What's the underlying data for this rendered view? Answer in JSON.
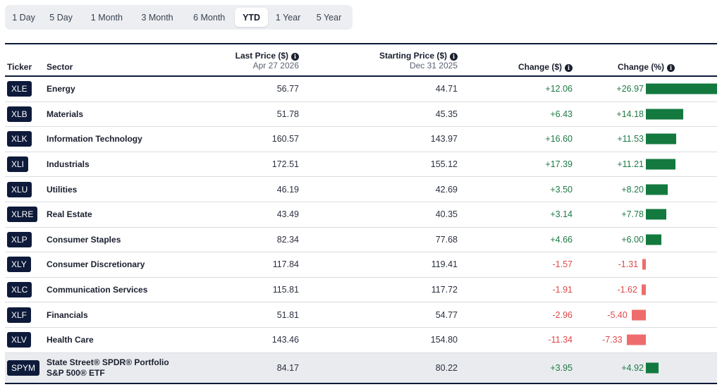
{
  "tabs": [
    {
      "label": "1 Day",
      "active": false
    },
    {
      "label": "5 Day",
      "active": false
    },
    {
      "label": "1 Month",
      "active": false
    },
    {
      "label": "3 Month",
      "active": false
    },
    {
      "label": "6 Month",
      "active": false
    },
    {
      "label": "YTD",
      "active": true
    },
    {
      "label": "1 Year",
      "active": false
    },
    {
      "label": "5 Year",
      "active": false
    }
  ],
  "columns": {
    "ticker": "Ticker",
    "sector": "Sector",
    "last_price": "Last Price ($)",
    "last_price_date": "Apr 27 2026",
    "starting_price": "Starting Price ($)",
    "starting_price_date": "Dec 31 2025",
    "change_dollar": "Change ($)",
    "change_pct": "Change (%)"
  },
  "icons": {
    "info": "info-icon"
  },
  "colors": {
    "navy": "#0e1a3a",
    "positive": "#13793f",
    "negative": "#ee6c6c"
  },
  "rows": [
    {
      "ticker": "XLE",
      "sector": "Energy",
      "last": "56.77",
      "start": "44.71",
      "chg": "+12.06",
      "pct": "+26.97",
      "pct_value": 26.97
    },
    {
      "ticker": "XLB",
      "sector": "Materials",
      "last": "51.78",
      "start": "45.35",
      "chg": "+6.43",
      "pct": "+14.18",
      "pct_value": 14.18
    },
    {
      "ticker": "XLK",
      "sector": "Information Technology",
      "last": "160.57",
      "start": "143.97",
      "chg": "+16.60",
      "pct": "+11.53",
      "pct_value": 11.53
    },
    {
      "ticker": "XLI",
      "sector": "Industrials",
      "last": "172.51",
      "start": "155.12",
      "chg": "+17.39",
      "pct": "+11.21",
      "pct_value": 11.21
    },
    {
      "ticker": "XLU",
      "sector": "Utilities",
      "last": "46.19",
      "start": "42.69",
      "chg": "+3.50",
      "pct": "+8.20",
      "pct_value": 8.2
    },
    {
      "ticker": "XLRE",
      "sector": "Real Estate",
      "last": "43.49",
      "start": "40.35",
      "chg": "+3.14",
      "pct": "+7.78",
      "pct_value": 7.78
    },
    {
      "ticker": "XLP",
      "sector": "Consumer Staples",
      "last": "82.34",
      "start": "77.68",
      "chg": "+4.66",
      "pct": "+6.00",
      "pct_value": 6.0
    },
    {
      "ticker": "XLY",
      "sector": "Consumer Discretionary",
      "last": "117.84",
      "start": "119.41",
      "chg": "-1.57",
      "pct": "-1.31",
      "pct_value": -1.31
    },
    {
      "ticker": "XLC",
      "sector": "Communication Services",
      "last": "115.81",
      "start": "117.72",
      "chg": "-1.91",
      "pct": "-1.62",
      "pct_value": -1.62
    },
    {
      "ticker": "XLF",
      "sector": "Financials",
      "last": "51.81",
      "start": "54.77",
      "chg": "-2.96",
      "pct": "-5.40",
      "pct_value": -5.4
    },
    {
      "ticker": "XLV",
      "sector": "Health Care",
      "last": "143.46",
      "start": "154.80",
      "chg": "-11.34",
      "pct": "-7.33",
      "pct_value": -7.33
    },
    {
      "ticker": "SPYM",
      "sector": "State Street® SPDR® Portfolio S&P 500® ETF",
      "last": "84.17",
      "start": "80.22",
      "chg": "+3.95",
      "pct": "+4.92",
      "pct_value": 4.92
    }
  ]
}
